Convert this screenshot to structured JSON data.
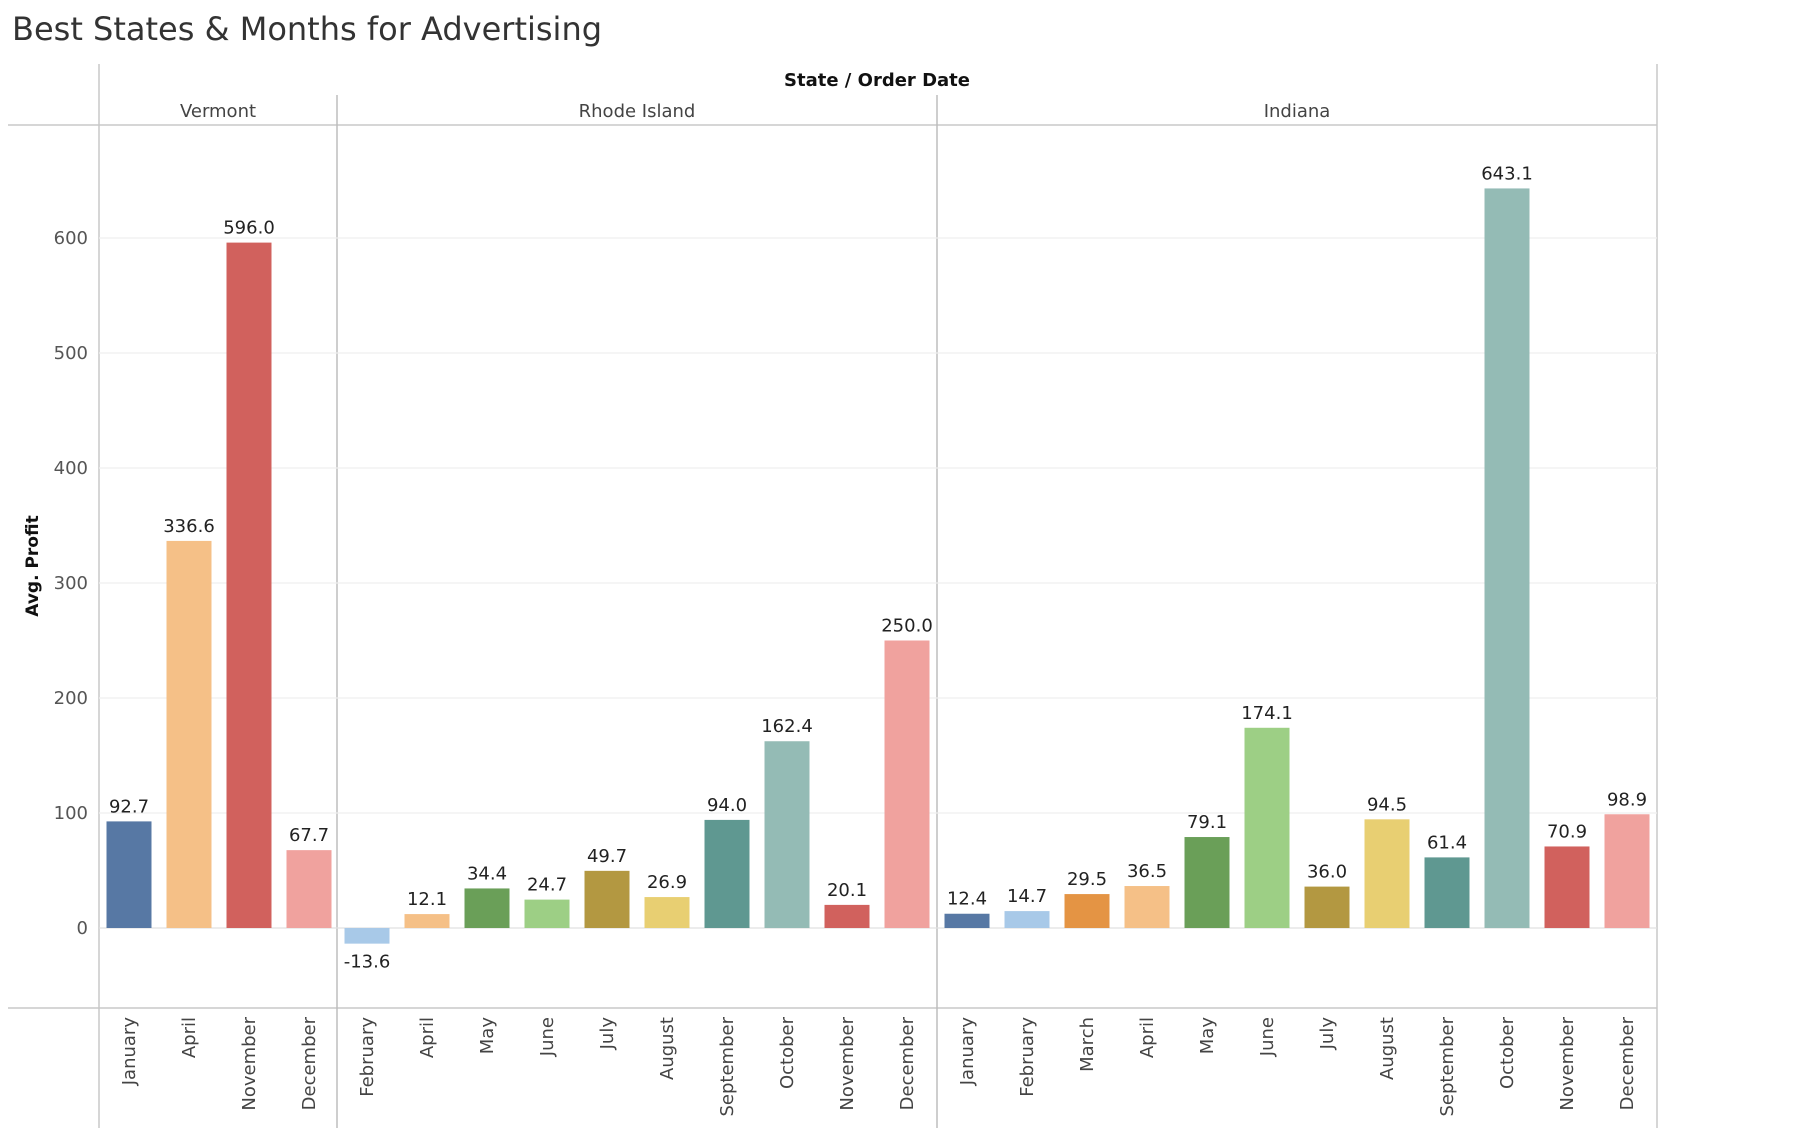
{
  "title": "Best States & Months for Advertising",
  "chart_data": {
    "type": "bar",
    "title": "Best States & Months for Advertising",
    "column_header": "State / Order Date",
    "ylabel": "Avg. Profit",
    "ylim": [
      -70,
      700
    ],
    "yticks": [
      0,
      100,
      200,
      300,
      400,
      500,
      600
    ],
    "grid": true,
    "colors": {
      "January": "#5778a4",
      "February": "#a8c9e8",
      "March": "#e49444",
      "April": "#f5c087",
      "May": "#6a9f58",
      "June": "#9dcf85",
      "July": "#b39841",
      "August": "#e8cf72",
      "September": "#5f9891",
      "October": "#94bbb5",
      "November": "#d1615d",
      "December": "#f0a29e"
    },
    "panes": [
      {
        "state": "Vermont",
        "categories": [
          "January",
          "April",
          "November",
          "December"
        ],
        "values": [
          92.7,
          336.6,
          596.0,
          67.7
        ],
        "labels": [
          "92.7",
          "336.6",
          "596.0",
          "67.7"
        ]
      },
      {
        "state": "Rhode Island",
        "categories": [
          "February",
          "April",
          "May",
          "June",
          "July",
          "August",
          "September",
          "October",
          "November",
          "December"
        ],
        "values": [
          -13.6,
          12.1,
          34.4,
          24.7,
          49.7,
          26.9,
          94.0,
          162.4,
          20.1,
          250.0
        ],
        "labels": [
          "-13.6",
          "12.1",
          "34.4",
          "24.7",
          "49.7",
          "26.9",
          "94.0",
          "162.4",
          "20.1",
          "250.0"
        ]
      },
      {
        "state": "Indiana",
        "categories": [
          "January",
          "February",
          "March",
          "April",
          "May",
          "June",
          "July",
          "August",
          "September",
          "October",
          "November",
          "December"
        ],
        "values": [
          12.4,
          14.7,
          29.5,
          36.5,
          79.1,
          174.1,
          36.0,
          94.5,
          61.4,
          643.1,
          70.9,
          98.9
        ],
        "labels": [
          "12.4",
          "14.7",
          "29.5",
          "36.5",
          "79.1",
          "174.1",
          "36.0",
          "94.5",
          "61.4",
          "643.1",
          "70.9",
          "98.9"
        ]
      }
    ]
  }
}
